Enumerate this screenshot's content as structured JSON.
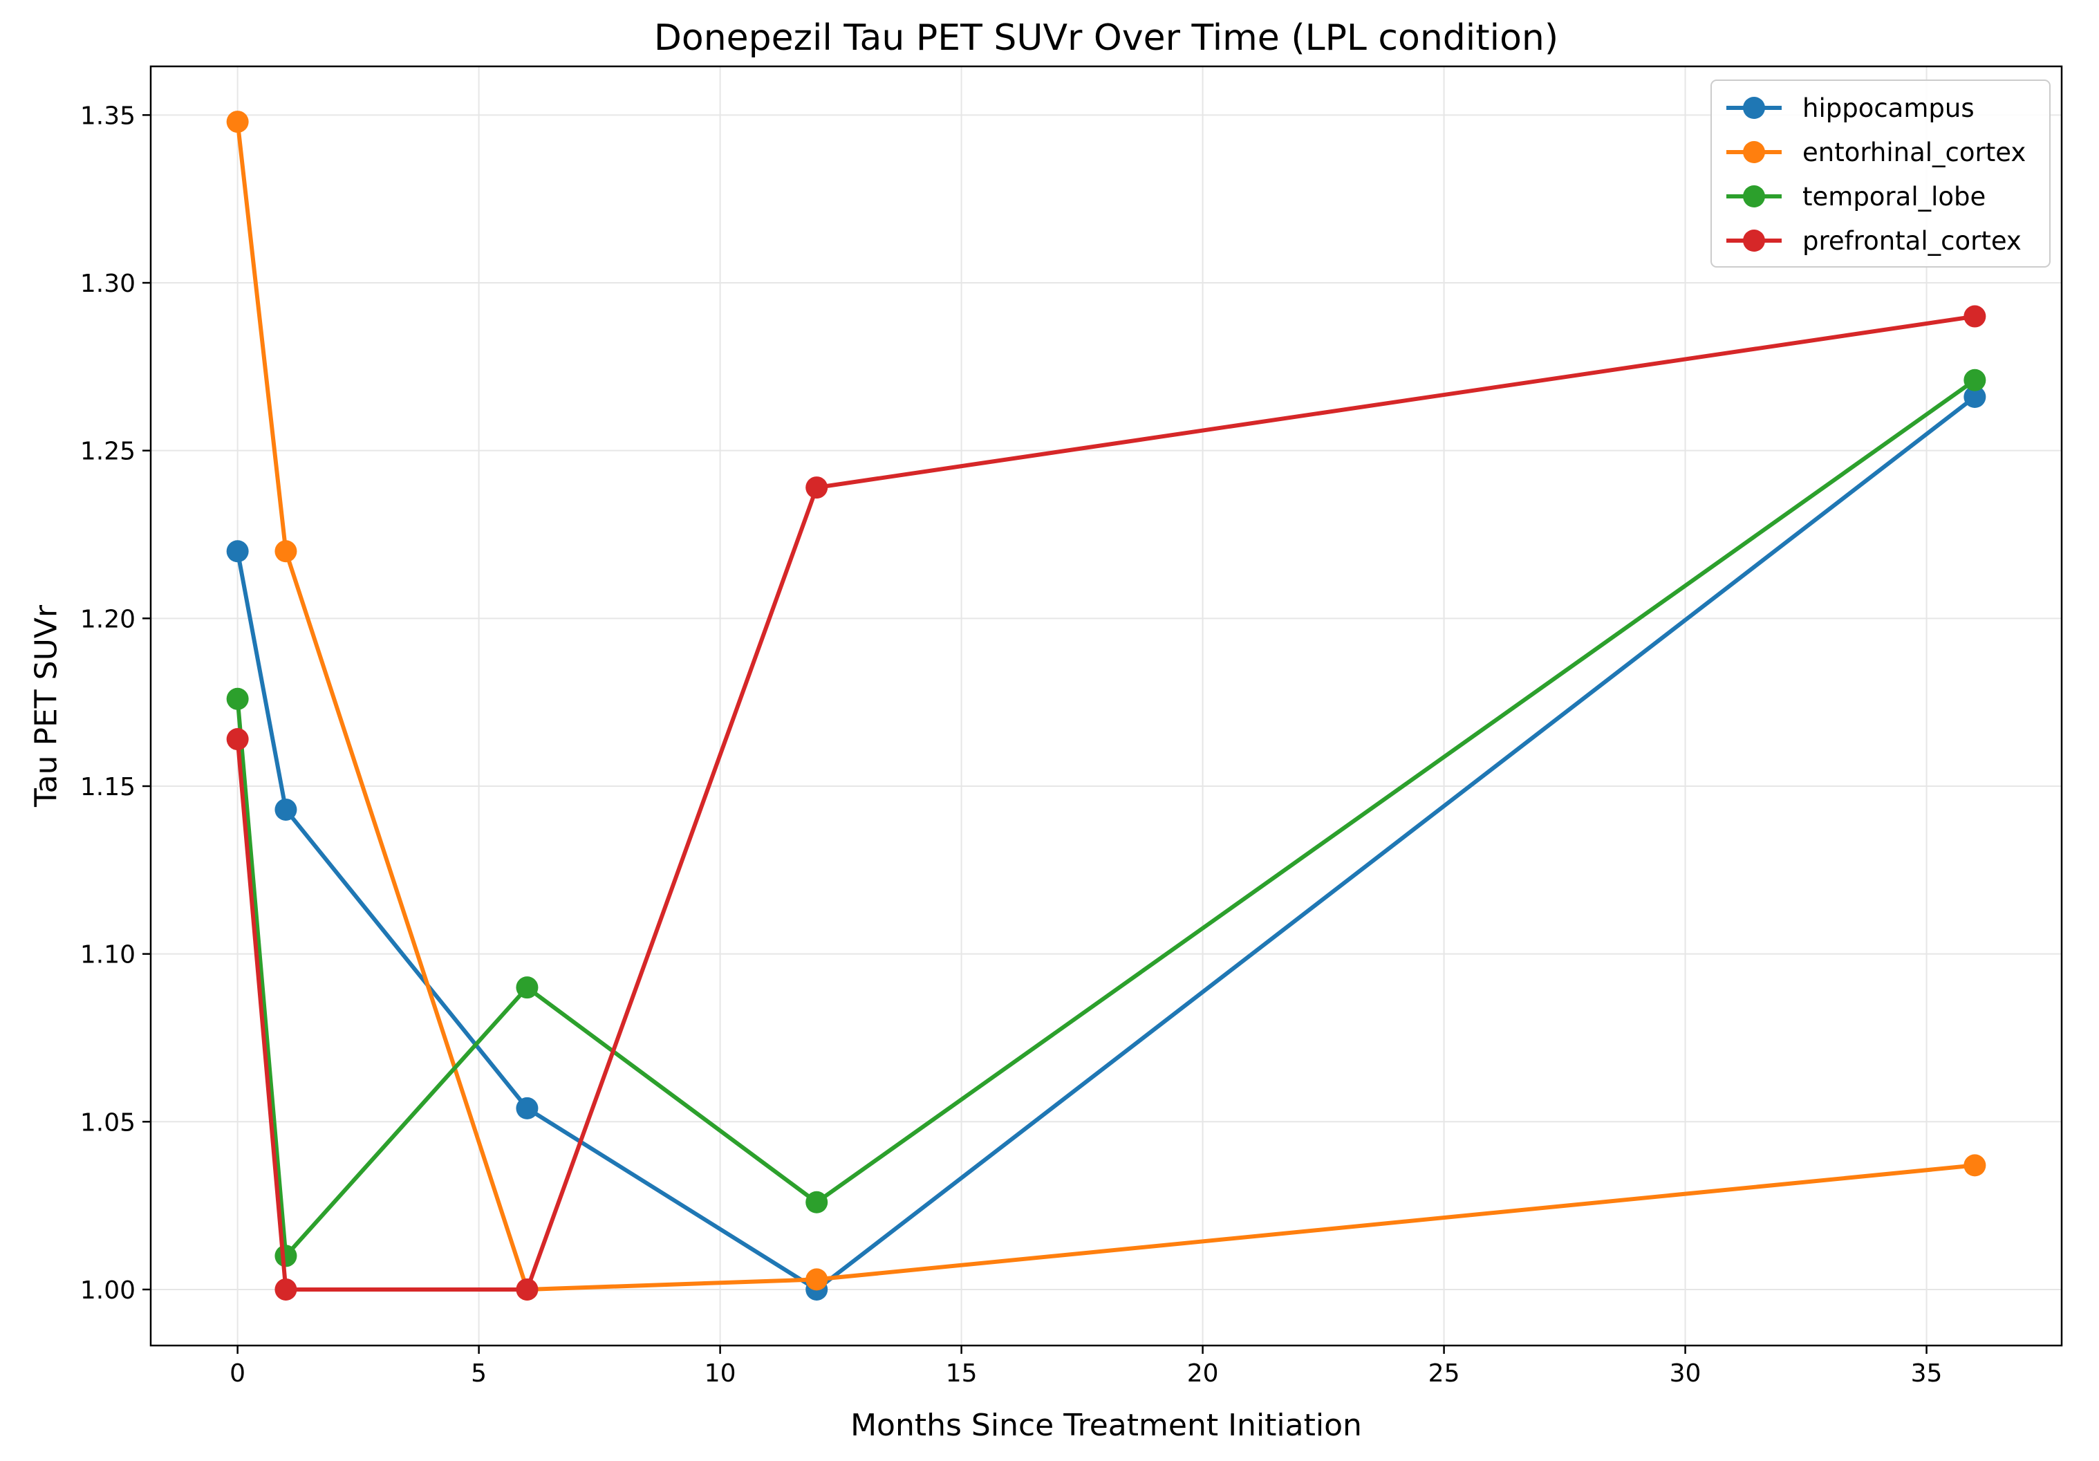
{
  "chart_data": {
    "type": "line",
    "title": "Donepezil Tau PET SUVr Over Time (LPL condition)",
    "xlabel": "Months Since Treatment Initiation",
    "ylabel": "Tau PET SUVr",
    "x": [
      0,
      1,
      6,
      12,
      36
    ],
    "xlim": [
      -1.8,
      37.8
    ],
    "ylim": [
      0.9833,
      1.3645
    ],
    "xticks": [
      0,
      5,
      10,
      15,
      20,
      25,
      30,
      35
    ],
    "yticks": [
      1.0,
      1.05,
      1.1,
      1.15,
      1.2,
      1.25,
      1.3,
      1.35
    ],
    "xtick_labels": [
      "0",
      "5",
      "10",
      "15",
      "20",
      "25",
      "30",
      "35"
    ],
    "ytick_labels": [
      "1.00",
      "1.05",
      "1.10",
      "1.15",
      "1.20",
      "1.25",
      "1.30",
      "1.35"
    ],
    "grid": true,
    "legend_position": "top-right",
    "series": [
      {
        "name": "hippocampus",
        "color": "#1f77b4",
        "values": [
          1.22,
          1.143,
          1.054,
          1.0,
          1.266
        ]
      },
      {
        "name": "entorhinal_cortex",
        "color": "#ff7f0e",
        "values": [
          1.348,
          1.22,
          1.0,
          1.003,
          1.037
        ]
      },
      {
        "name": "temporal_lobe",
        "color": "#2ca02c",
        "values": [
          1.176,
          1.01,
          1.09,
          1.026,
          1.271
        ]
      },
      {
        "name": "prefrontal_cortex",
        "color": "#d62728",
        "values": [
          1.164,
          1.0,
          1.0,
          1.239,
          1.29
        ]
      }
    ]
  }
}
